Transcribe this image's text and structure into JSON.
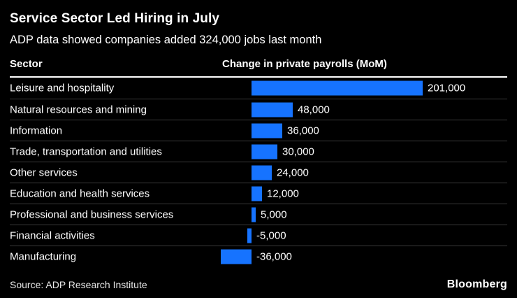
{
  "header": {
    "title": "Service Sector Led Hiring in July",
    "subtitle": "ADP data showed companies added 324,000 jobs last month",
    "col_left": "Sector",
    "col_right": "Change in private payrolls (MoM)"
  },
  "footer": {
    "source": "Source: ADP Research Institute",
    "brand": "Bloomberg"
  },
  "chart_data": {
    "type": "bar",
    "orientation": "horizontal",
    "title": "Service Sector Led Hiring in July",
    "subtitle": "ADP data showed companies added 324,000 jobs last month",
    "xlabel": "Change in private payrolls (MoM)",
    "ylabel": "Sector",
    "categories": [
      "Leisure and hospitality",
      "Natural resources and mining",
      "Information",
      "Trade, transportation and utilities",
      "Other services",
      "Education and health services",
      "Professional and business services",
      "Financial activities",
      "Manufacturing"
    ],
    "values": [
      201000,
      48000,
      36000,
      30000,
      24000,
      12000,
      5000,
      -5000,
      -36000
    ],
    "value_labels": [
      "201,000",
      "48,000",
      "36,000",
      "30,000",
      "24,000",
      "12,000",
      "5,000",
      "-5,000",
      "-36,000"
    ],
    "bar_color": "#1673ff",
    "background_color": "#000000",
    "xlim": [
      -60000,
      310000
    ],
    "grid": false,
    "legend": false
  }
}
